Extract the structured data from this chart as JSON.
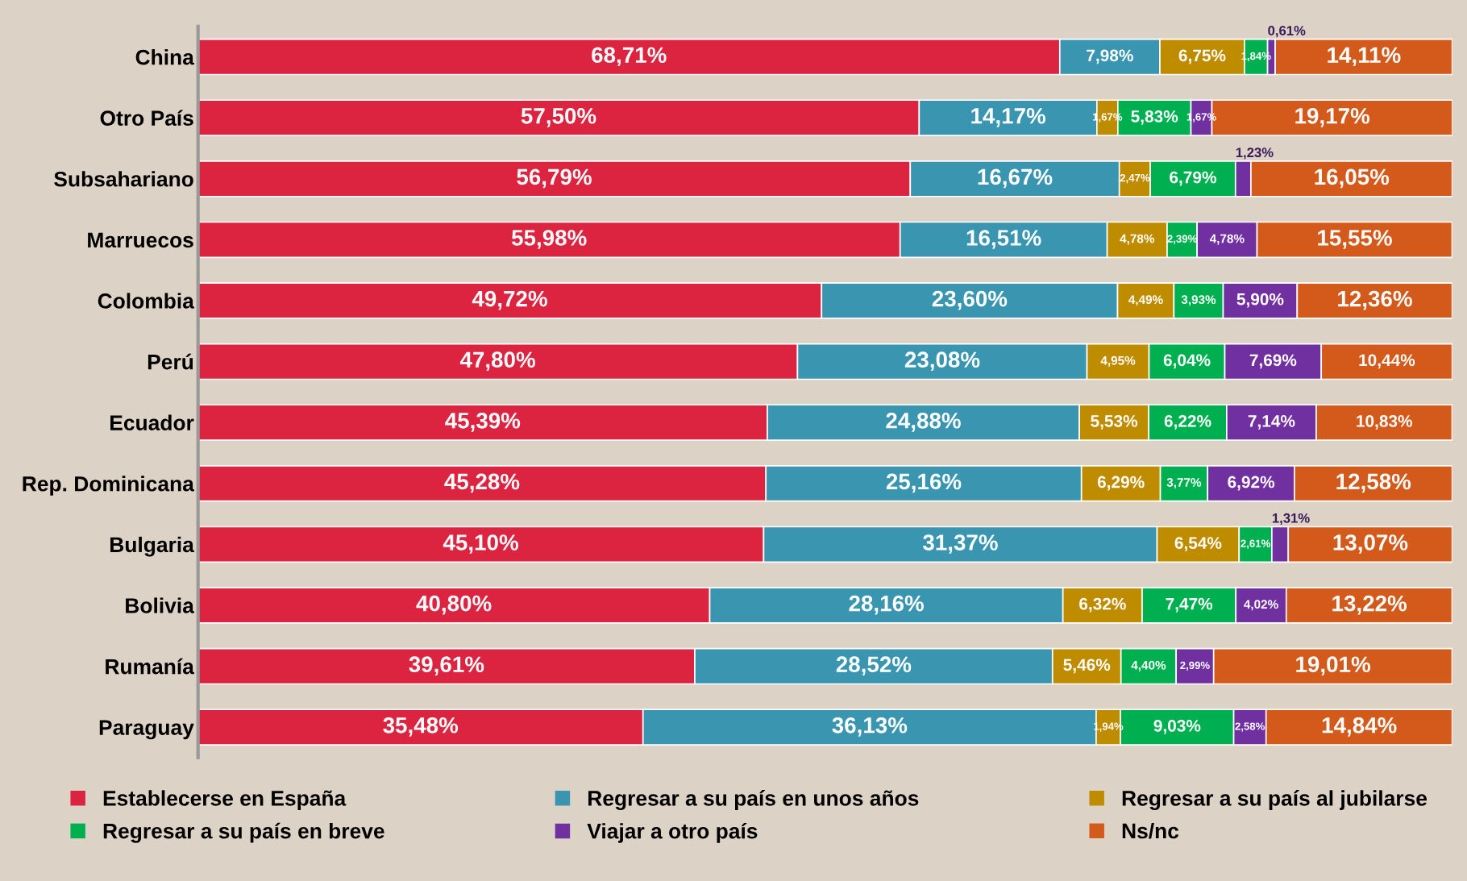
{
  "chart_data": {
    "type": "bar",
    "orientation": "horizontal",
    "stacked": true,
    "legend": "bottom",
    "grid": false,
    "categories": [
      "China",
      "Otro País",
      "Subsahariano",
      "Marruecos",
      "Colombia",
      "Perú",
      "Ecuador",
      "Rep. Dominicana",
      "Bulgaria",
      "Bolivia",
      "Rumanía",
      "Paraguay"
    ],
    "series": [
      {
        "name": "Establecerse en España",
        "color": "#dc2440",
        "values": [
          68.71,
          57.5,
          56.79,
          55.98,
          49.72,
          47.8,
          45.39,
          45.28,
          45.1,
          40.8,
          39.61,
          35.48
        ],
        "value_labels": [
          "68,71%",
          "57,50%",
          "56,79%",
          "55,98%",
          "49,72%",
          "47,80%",
          "45,39%",
          "45,28%",
          "45,10%",
          "40,80%",
          "39,61%",
          "35,48%"
        ]
      },
      {
        "name": "Regresar a su país en unos años",
        "color": "#3a95b0",
        "values": [
          7.98,
          14.17,
          16.67,
          16.51,
          23.6,
          23.08,
          24.88,
          25.16,
          31.37,
          28.16,
          28.52,
          36.13
        ],
        "value_labels": [
          "7,98%",
          "14,17%",
          "16,67%",
          "16,51%",
          "23,60%",
          "23,08%",
          "24,88%",
          "25,16%",
          "31,37%",
          "28,16%",
          "28,52%",
          "36,13%"
        ]
      },
      {
        "name": "Regresar a su país al jubilarse",
        "color": "#bf8c00",
        "values": [
          6.75,
          1.67,
          2.47,
          4.78,
          4.49,
          4.95,
          5.53,
          6.29,
          6.54,
          6.32,
          5.46,
          1.94
        ],
        "value_labels": [
          "6,75%",
          "1,67%",
          "2,47%",
          "4,78%",
          "4,49%",
          "4,95%",
          "5,53%",
          "6,29%",
          "6,54%",
          "6,32%",
          "5,46%",
          "1,94%"
        ]
      },
      {
        "name": "Regresar a su país en breve",
        "color": "#00b050",
        "values": [
          1.84,
          5.83,
          6.79,
          2.39,
          3.93,
          6.04,
          6.22,
          3.77,
          2.61,
          7.47,
          4.4,
          9.03
        ],
        "value_labels": [
          "1,84%",
          "5,83%",
          "6,79%",
          "2,39%",
          "3,93%",
          "6,04%",
          "6,22%",
          "3,77%",
          "2,61%",
          "7,47%",
          "4,40%",
          "9,03%"
        ]
      },
      {
        "name": "Viajar a otro país",
        "color": "#7030a0",
        "values": [
          0.61,
          1.67,
          1.23,
          4.78,
          5.9,
          7.69,
          7.14,
          6.92,
          1.31,
          4.02,
          2.99,
          2.58
        ],
        "value_labels": [
          "0,61%",
          "1,67%",
          "1,23%",
          "4,78%",
          "5,90%",
          "7,69%",
          "7,14%",
          "6,92%",
          "1,31%",
          "4,02%",
          "2,99%",
          "2,58%"
        ]
      },
      {
        "name": "Ns/nc",
        "color": "#d45a1c",
        "values": [
          14.11,
          19.17,
          16.05,
          15.55,
          12.36,
          10.44,
          10.83,
          12.58,
          13.07,
          13.22,
          19.01,
          14.84
        ],
        "value_labels": [
          "14,11%",
          "19,17%",
          "16,05%",
          "15,55%",
          "12,36%",
          "10,44%",
          "10,83%",
          "12,58%",
          "13,07%",
          "13,22%",
          "19,01%",
          "14,84%"
        ]
      }
    ]
  }
}
